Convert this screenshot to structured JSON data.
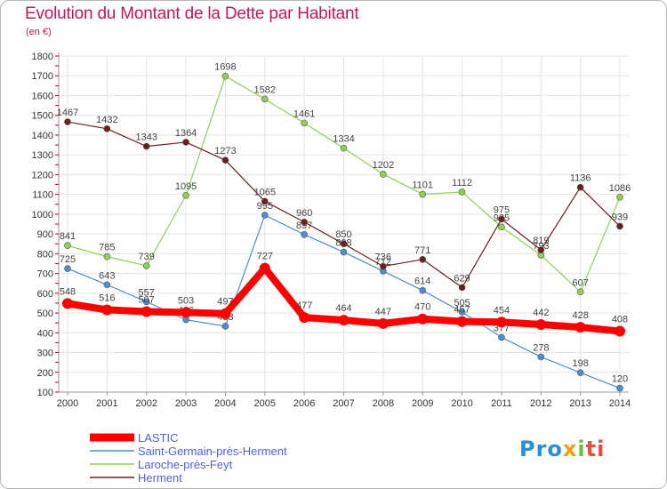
{
  "chart_data": {
    "type": "line",
    "title": "Evolution du Montant de la Dette par Habitant",
    "subtitle": "(en €)",
    "xlabel": "",
    "ylabel": "",
    "x": [
      "2000",
      "2001",
      "2002",
      "2003",
      "2004",
      "2005",
      "2006",
      "2007",
      "2008",
      "2009",
      "2010",
      "2011",
      "2012",
      "2013",
      "2014"
    ],
    "ylim": [
      100,
      1800
    ],
    "yticks": [
      100,
      200,
      300,
      400,
      500,
      600,
      700,
      800,
      900,
      1000,
      1100,
      1200,
      1300,
      1400,
      1500,
      1600,
      1700,
      1800
    ],
    "grid": true,
    "legend_position": "bottom-left",
    "series": [
      {
        "name": "LASTIC",
        "color": "#ff0000",
        "values": [
          548,
          516,
          507,
          503,
          497,
          727,
          477,
          464,
          447,
          470,
          457,
          454,
          442,
          428,
          408
        ]
      },
      {
        "name": "Saint-Germain-près-Herment",
        "color": "#4a8fd0",
        "values": [
          725,
          643,
          557,
          466,
          433,
          995,
          897,
          808,
          712,
          614,
          505,
          377,
          278,
          198,
          120
        ]
      },
      {
        "name": "Laroche-près-Feyt",
        "color": "#8fd14f",
        "values": [
          841,
          785,
          739,
          1095,
          1698,
          1582,
          1461,
          1334,
          1202,
          1101,
          1112,
          935,
          793,
          607,
          1086
        ]
      },
      {
        "name": "Herment",
        "color": "#6b1e1e",
        "values": [
          1467,
          1432,
          1343,
          1364,
          1273,
          1065,
          960,
          850,
          736,
          771,
          629,
          975,
          819,
          1136,
          939
        ]
      }
    ]
  },
  "logo": {
    "p1": "Pro",
    "p2": "x",
    "p3": "i",
    "p4": "ti"
  }
}
